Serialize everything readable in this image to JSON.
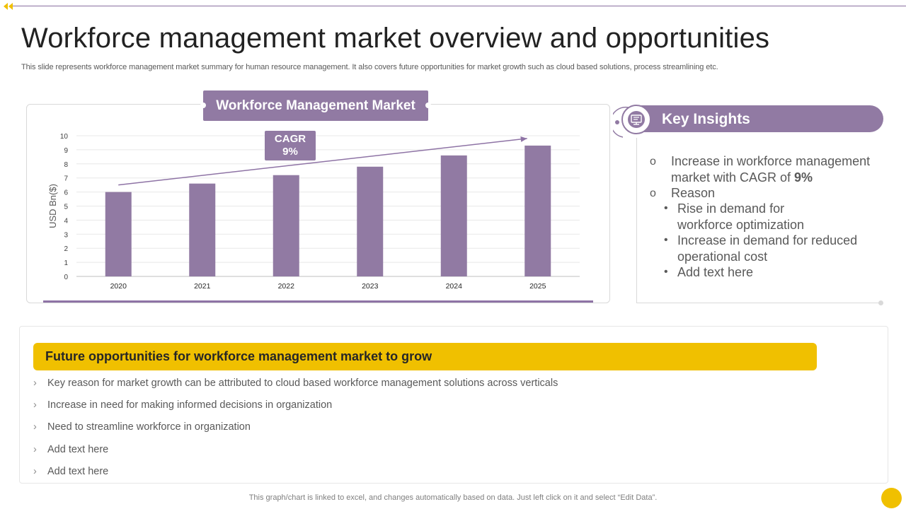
{
  "slide": {
    "title": "Workforce management market overview and opportunities",
    "subtitle": "This slide represents workforce management market summary for human resource management. It also covers future opportunities for market growth such as cloud based solutions, process streamlining etc.",
    "footer_note": "This graph/chart is linked to excel, and changes automatically based on data. Just left click on it and select “Edit Data”."
  },
  "chart_panel": {
    "header": "Workforce Management Market",
    "cagr_label": "CAGR",
    "cagr_value": "9%"
  },
  "chart_data": {
    "type": "bar",
    "categories": [
      "2020",
      "2021",
      "2022",
      "2023",
      "2024",
      "2025"
    ],
    "values": [
      6.0,
      6.6,
      7.2,
      7.8,
      8.6,
      9.3
    ],
    "ylabel": "USD Bn($)",
    "ylim": [
      0,
      10
    ],
    "yticks": [
      0,
      1,
      2,
      3,
      4,
      5,
      6,
      7,
      8,
      9,
      10
    ],
    "grid": true,
    "bar_color": "#917aa3",
    "trend_arrow": true
  },
  "key_insights": {
    "title": "Key Insights",
    "items": [
      {
        "marker": "o",
        "line1": "Increase in workforce management",
        "line2_prefix": "market with CAGR of ",
        "line2_bold": "9%"
      },
      {
        "marker": "o",
        "line1": "Reason"
      }
    ],
    "sub_items": [
      {
        "line1": "Rise in demand for",
        "line2": "workforce optimization"
      },
      {
        "line1": "Increase in demand for reduced",
        "line2": "operational cost"
      },
      {
        "line1": "Add text here"
      }
    ]
  },
  "opportunities": {
    "header": "Future opportunities for workforce management market to grow",
    "bullet_glyph": "›",
    "items": [
      "Key reason for market growth can be attributed to cloud based workforce management solutions across verticals",
      "Increase in need for making informed decisions in organization",
      "Need to streamline workforce in organization",
      "Add text here",
      "Add text here"
    ]
  },
  "colors": {
    "accent_purple": "#917aa3",
    "accent_yellow": "#f0c000"
  },
  "icons": {
    "back": "back-arrow-icon",
    "insights": "monitor-icon"
  }
}
